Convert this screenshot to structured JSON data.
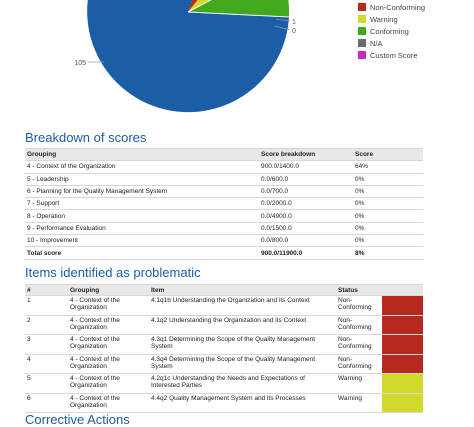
{
  "pie": {
    "labels": [
      "105",
      "1",
      "0"
    ]
  },
  "legend": [
    {
      "label": "Non-Conforming",
      "color": "#b52a1c"
    },
    {
      "label": "Warning",
      "color": "#d3d82c"
    },
    {
      "label": "Conforming",
      "color": "#42a81e"
    },
    {
      "label": "N/A",
      "color": "#6b6b6b"
    },
    {
      "label": "Custom Score",
      "color": "#c22dbd"
    }
  ],
  "breakdown": {
    "title": "Breakdown of scores",
    "header": [
      "Grouping",
      "Score breakdown",
      "Score"
    ],
    "rows": [
      [
        "4 - Context of the Organization",
        "900.0/1400.0",
        "64%"
      ],
      [
        "5 - Leadership",
        "0.0/600.0",
        "0%"
      ],
      [
        "6 - Planning for the Quality Management System",
        "0.0/700.0",
        "0%"
      ],
      [
        "7 - Support",
        "0.0/2000.0",
        "0%"
      ],
      [
        "8 - Operation",
        "0.0/4900.0",
        "0%"
      ],
      [
        "9 - Performance Evaluation",
        "0.0/1500.0",
        "0%"
      ],
      [
        "10 - Improvement",
        "0.0/800.0",
        "0%"
      ]
    ],
    "total": [
      "Total score",
      "900.0/11900.0",
      "8%"
    ]
  },
  "problems": {
    "title": "Items identified as problematic",
    "header": [
      "#",
      "Grouping",
      "Item",
      "Status"
    ],
    "rows": [
      {
        "number": "1",
        "grouping": "4 - Context of the Organization",
        "item": "4.1q1b Understanding the Organization and its Context",
        "status": "Non-Conforming",
        "color": "#b52a1c"
      },
      {
        "number": "2",
        "grouping": "4 - Context of the Organization",
        "item": "4.1q2 Understanding the Organization and its Context",
        "status": "Non-Conforming",
        "color": "#b52a1c"
      },
      {
        "number": "3",
        "grouping": "4 - Context of the Organization",
        "item": "4.3q1 Determining the Scope of the Quality Management System",
        "status": "Non-Conforming",
        "color": "#b52a1c"
      },
      {
        "number": "4",
        "grouping": "4 - Context of the Organization",
        "item": "4.3q4 Determining the Scope of the Quality Management System",
        "status": "Non-Conforming",
        "color": "#b52a1c"
      },
      {
        "number": "5",
        "grouping": "4 - Context of the Organization",
        "item": "4.2q1c Understanding the Needs and Expectations of Interested Parties",
        "status": "Warning",
        "color": "#d3d82c"
      },
      {
        "number": "6",
        "grouping": "4 - Context of the Organization",
        "item": "4.4q2 Quality Management System and its Processes",
        "status": "Warning",
        "color": "#d3d82c"
      }
    ]
  },
  "corrective": {
    "title": "Corrective Actions"
  }
}
